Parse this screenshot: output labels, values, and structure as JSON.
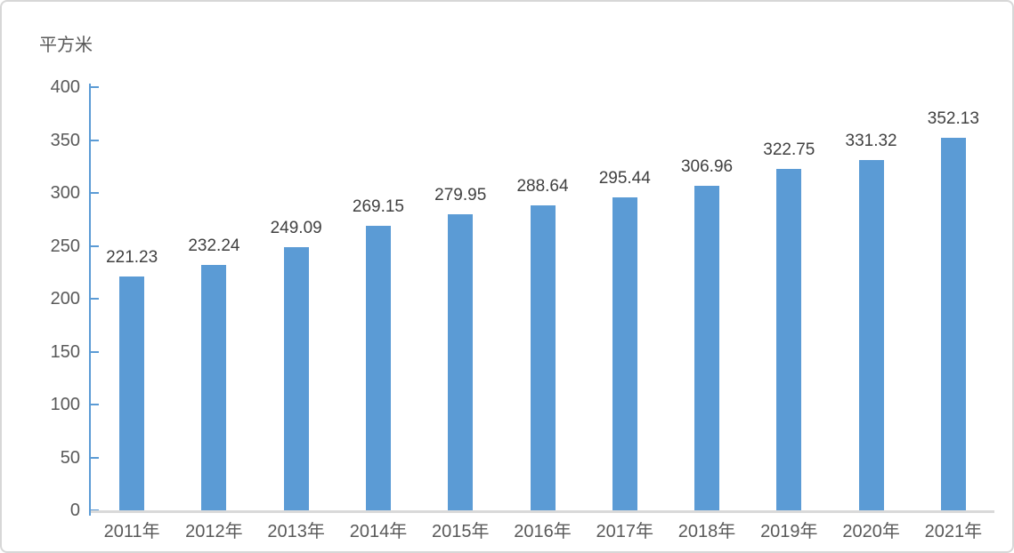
{
  "chart_data": {
    "type": "bar",
    "title": "",
    "unit_label": "平方米",
    "categories": [
      "2011年",
      "2012年",
      "2013年",
      "2014年",
      "2015年",
      "2016年",
      "2017年",
      "2018年",
      "2019年",
      "2020年",
      "2021年"
    ],
    "values": [
      221.23,
      232.24,
      249.09,
      269.15,
      279.95,
      288.64,
      295.44,
      306.96,
      322.75,
      331.32,
      352.13
    ],
    "value_decimals": 2,
    "xlabel": "",
    "ylabel": "平方米",
    "ylim": [
      0,
      400
    ],
    "yticks": [
      0,
      50,
      100,
      150,
      200,
      250,
      300,
      350,
      400
    ],
    "grid": false,
    "legend": false,
    "data_labels": true,
    "colors": {
      "bar": "#5b9bd5",
      "axis_line": "#5b9bd5",
      "baseline": "#d9d9d9",
      "tick_label": "#595959",
      "value_label": "#404040",
      "frame_border": "#d7d7d7",
      "background": "#ffffff"
    }
  }
}
